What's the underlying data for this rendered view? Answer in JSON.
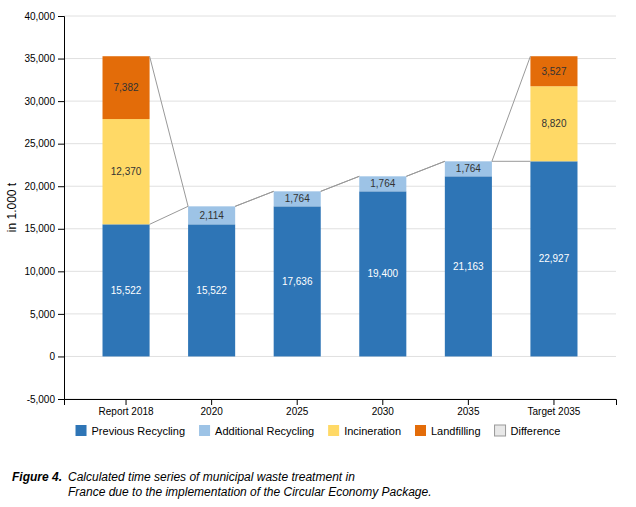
{
  "chart_data": {
    "type": "bar",
    "stacked": true,
    "data_labels": true,
    "grid": true,
    "legend": "bottom",
    "categories": [
      "Report 2018",
      "2020",
      "2025",
      "2030",
      "2035",
      "Target 2035"
    ],
    "series": [
      {
        "name": "Previous Recycling",
        "color": "#2E75B6",
        "values": [
          15522,
          15522,
          17636,
          19400,
          21163,
          22927
        ],
        "value_labels": [
          "15,522",
          "15,522",
          "17,636",
          "19,400",
          "21,163",
          "22,927"
        ]
      },
      {
        "name": "Additional Recycling",
        "color": "#9DC3E6",
        "values": [
          0,
          2114,
          1764,
          1764,
          1764,
          0
        ],
        "value_labels": [
          null,
          "2,114",
          "1,764",
          "1,764",
          "1,764",
          null
        ]
      },
      {
        "name": "Incineration",
        "color": "#FFD966",
        "values": [
          12370,
          0,
          0,
          0,
          0,
          8820
        ],
        "value_labels": [
          "12,370",
          null,
          null,
          null,
          null,
          "8,820"
        ]
      },
      {
        "name": "Landfilling",
        "color": "#E36C09",
        "values": [
          7382,
          0,
          0,
          0,
          0,
          3527
        ],
        "value_labels": [
          "7,382",
          null,
          null,
          null,
          null,
          "3,527"
        ]
      }
    ],
    "difference": {
      "name": "Difference",
      "color": "#999999"
    },
    "ylabel": "in 1.000 t",
    "ylim": [
      -5000,
      40000
    ],
    "yticks": [
      {
        "value": -5000,
        "label": "-5,000"
      },
      0,
      {
        "value": 5000,
        "label": "5,000"
      },
      {
        "value": 10000,
        "label": "10,000"
      },
      {
        "value": 15000,
        "label": "15,000"
      },
      {
        "value": 20000,
        "label": "20,000"
      },
      {
        "value": 25000,
        "label": "25,000"
      },
      {
        "value": 30000,
        "label": "30,000"
      },
      {
        "value": 35000,
        "label": "35,000"
      },
      {
        "value": 40000,
        "label": "40,000"
      }
    ],
    "annotations": [
      "Figure 4.",
      "Calculated time series of municipal waste treatment in",
      "France due to the implementation of the Circular Economy Package."
    ]
  }
}
